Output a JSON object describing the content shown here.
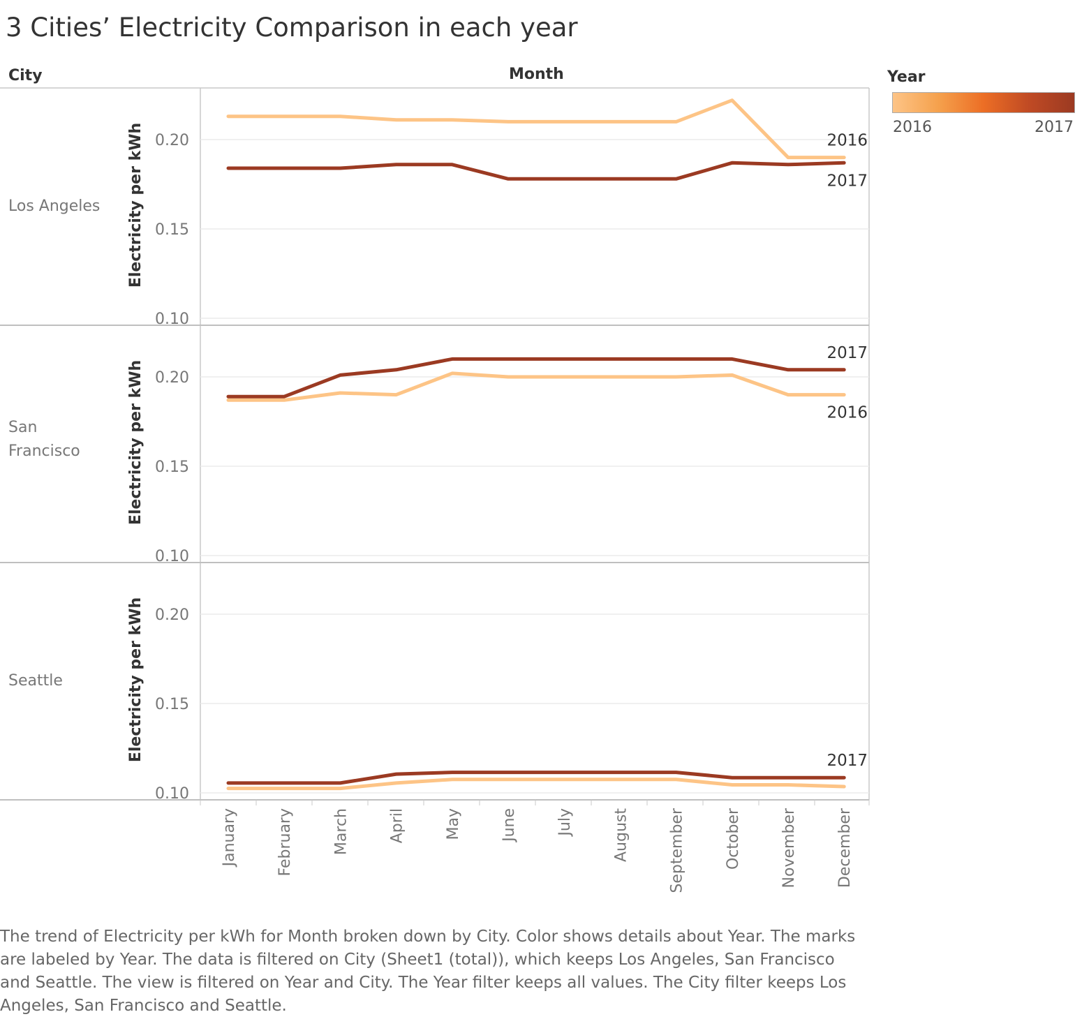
{
  "title": "3 Cities’ Electricity Comparison in each year",
  "headers": {
    "city": "City",
    "month": "Month"
  },
  "legend": {
    "title": "Year",
    "min_label": "2016",
    "max_label": "2017",
    "colors": [
      "#fdc486",
      "#f5a14d",
      "#ec6e25",
      "#c04a24",
      "#9b3a22"
    ]
  },
  "caption": "The trend of Electricity per kWh for Month broken down by City.  Color shows details about Year.  The marks are labeled by Year. The data is filtered on City (Sheet1 (total)), which keeps Los Angeles, San Francisco and Seattle. The view is filtered on Year and City. The Year filter keeps all values. The City filter keeps Los Angeles, San Francisco and Seattle.",
  "chart_data": {
    "type": "line",
    "x": [
      "January",
      "February",
      "March",
      "April",
      "May",
      "June",
      "July",
      "August",
      "September",
      "October",
      "November",
      "December"
    ],
    "ylabel": "Electricity per kWh",
    "xlabel": "Month",
    "ylim": [
      0.1,
      0.23
    ],
    "yticks": [
      0.1,
      0.15,
      0.2
    ],
    "ytick_labels": [
      "0.10",
      "0.15",
      "0.20"
    ],
    "series_colors": {
      "2016": "#fdc486",
      "2017": "#9b3a22"
    },
    "grid": true,
    "panels": [
      {
        "city": "Los Angeles",
        "series": [
          {
            "name": "2016",
            "values": [
              0.213,
              0.213,
              0.213,
              0.211,
              0.211,
              0.21,
              0.21,
              0.21,
              0.21,
              0.222,
              0.19,
              0.19
            ]
          },
          {
            "name": "2017",
            "values": [
              0.184,
              0.184,
              0.184,
              0.186,
              0.186,
              0.178,
              0.178,
              0.178,
              0.178,
              0.187,
              0.186,
              0.187
            ]
          }
        ]
      },
      {
        "city": "San Francisco",
        "series": [
          {
            "name": "2016",
            "values": [
              0.187,
              0.187,
              0.191,
              0.19,
              0.202,
              0.2,
              0.2,
              0.2,
              0.2,
              0.201,
              0.19,
              0.19
            ]
          },
          {
            "name": "2017",
            "values": [
              0.189,
              0.189,
              0.201,
              0.204,
              0.21,
              0.21,
              0.21,
              0.21,
              0.21,
              0.21,
              0.204,
              0.204
            ]
          }
        ]
      },
      {
        "city": "Seattle",
        "series": [
          {
            "name": "2016",
            "values": [
              0.1025,
              0.1025,
              0.1025,
              0.1055,
              0.1075,
              0.1075,
              0.1075,
              0.1075,
              0.1075,
              0.1045,
              0.1045,
              0.1035
            ]
          },
          {
            "name": "2017",
            "values": [
              0.1055,
              0.1055,
              0.1055,
              0.1105,
              0.1115,
              0.1115,
              0.1115,
              0.1115,
              0.1115,
              0.1085,
              0.1085,
              0.1085
            ]
          }
        ]
      }
    ],
    "end_labels": [
      [
        {
          "series": "2016",
          "text": "2016"
        },
        {
          "series": "2017",
          "text": "2017"
        }
      ],
      [
        {
          "series": "2017",
          "text": "2017"
        },
        {
          "series": "2016",
          "text": "2016"
        }
      ],
      [
        {
          "series": "2017",
          "text": "2017"
        }
      ]
    ]
  }
}
